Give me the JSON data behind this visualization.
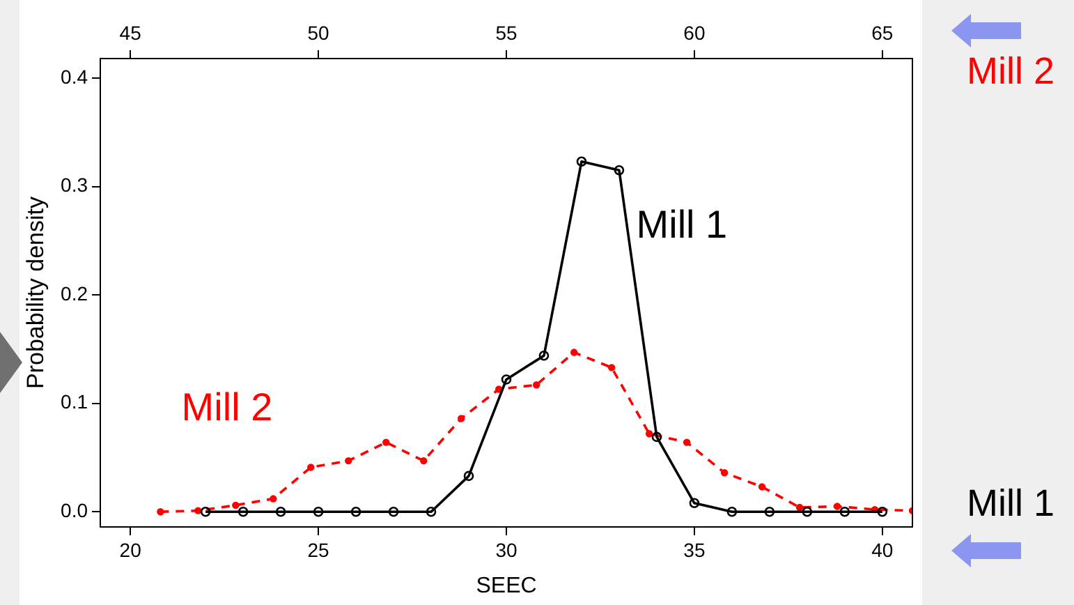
{
  "chart_data": {
    "type": "line",
    "xlabel": "SEEC",
    "ylabel": "Probability density",
    "xlim": [
      19.2,
      40.8
    ],
    "xticks": [
      20,
      25,
      30,
      35,
      40
    ],
    "x2lim": [
      44.2,
      65.8
    ],
    "x2ticks": [
      45,
      50,
      55,
      60,
      65
    ],
    "ylim": [
      -0.014,
      0.418
    ],
    "yticks": [
      {
        "value": 0,
        "label": "0.0"
      },
      {
        "value": 0.1,
        "label": "0.1"
      },
      {
        "value": 0.2,
        "label": "0.2"
      },
      {
        "value": 0.3,
        "label": "0.3"
      },
      {
        "value": 0.4,
        "label": "0.4"
      }
    ],
    "grid": false,
    "legend": false,
    "series": [
      {
        "name": "Mill 1",
        "color": "#000000",
        "marker": "circle",
        "line_style": "solid",
        "x": [
          22,
          23,
          24,
          25,
          26,
          27,
          28,
          29,
          30,
          31,
          32,
          33,
          34,
          35,
          36,
          37,
          38,
          39,
          40
        ],
        "values": [
          0,
          0,
          0,
          0,
          0,
          0,
          0,
          0.033,
          0.122,
          0.144,
          0.323,
          0.315,
          0.069,
          0.008,
          0,
          0,
          0,
          0,
          0
        ]
      },
      {
        "name": "Mill 2",
        "color": "#ff0000",
        "marker": "circle",
        "line_style": "dashed",
        "axis": "x2",
        "x": [
          45.8,
          46.8,
          47.8,
          48.8,
          49.8,
          50.8,
          51.8,
          52.8,
          53.8,
          54.8,
          55.8,
          56.8,
          57.8,
          58.8,
          59.8,
          60.8,
          61.8,
          62.8,
          63.8,
          64.8,
          65.8
        ],
        "values": [
          0,
          0.001,
          0.006,
          0.012,
          0.041,
          0.047,
          0.064,
          0.047,
          0.086,
          0.113,
          0.117,
          0.147,
          0.133,
          0.072,
          0.064,
          0.036,
          0.023,
          0.004,
          0.005,
          0.002,
          0.001
        ]
      }
    ]
  }
}
